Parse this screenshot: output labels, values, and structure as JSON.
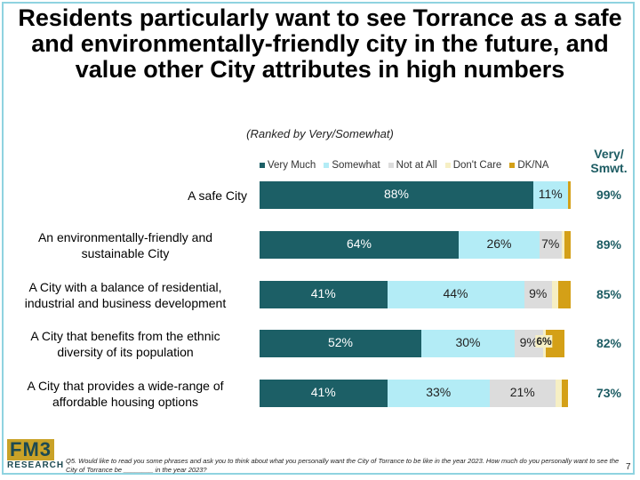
{
  "title": "Residents particularly want to see Torrance as a safe and environmentally-friendly city in the future, and value other City attributes in high numbers",
  "subtitle": "(Ranked by Very/Somewhat)",
  "smwt_header": "Very/\nSmwt.",
  "colors": {
    "very_much": "#1c5f66",
    "somewhat": "#b3ecf6",
    "not_at_all": "#dcdcdc",
    "dont_care": "#f6efc4",
    "dk_na": "#d4a017"
  },
  "chart_data": {
    "type": "bar",
    "orientation": "horizontal-stacked",
    "title": "Residents particularly want to see Torrance as a safe and environmentally-friendly city in the future, and value other City attributes in high numbers",
    "subtitle": "(Ranked by Very/Somewhat)",
    "legend_placement": "top",
    "xlim": [
      0,
      100
    ],
    "categories": [
      "A safe City",
      "An environmentally-friendly and sustainable City",
      "A City with a balance of residential, industrial and business development",
      "A City that benefits from the ethnic diversity of its population",
      "A City that provides a wide-range of affordable housing options"
    ],
    "series": [
      {
        "name": "Very Much",
        "values": [
          88,
          64,
          41,
          52,
          41
        ],
        "labels": [
          "88%",
          "64%",
          "41%",
          "52%",
          "41%"
        ]
      },
      {
        "name": "Somewhat",
        "values": [
          11,
          26,
          44,
          30,
          33
        ],
        "labels": [
          "11%",
          "26%",
          "44%",
          "30%",
          "33%"
        ]
      },
      {
        "name": "Not at All",
        "values": [
          0,
          7,
          9,
          9,
          21
        ],
        "labels": [
          "",
          "7%",
          "9%",
          "9%",
          "21%"
        ]
      },
      {
        "name": "Don't Care",
        "values": [
          0,
          1,
          2,
          1,
          2
        ],
        "labels": [
          "",
          "",
          "",
          "",
          ""
        ]
      },
      {
        "name": "DK/NA",
        "values": [
          1,
          2,
          4,
          6,
          2
        ],
        "labels": [
          "",
          "",
          "",
          "6%",
          ""
        ]
      }
    ],
    "very_smwt": [
      "99%",
      "89%",
      "85%",
      "82%",
      "73%"
    ]
  },
  "footnote": "Q5. Would like to read you some phrases and ask you to think about what you personally want the City of Torrance to be like in the year 2023. How much do you personally want to see the City of Torrance be ________ in the year 2023?",
  "page_number": "7",
  "logo": {
    "top": "FM3",
    "bottom": "RESEARCH"
  }
}
